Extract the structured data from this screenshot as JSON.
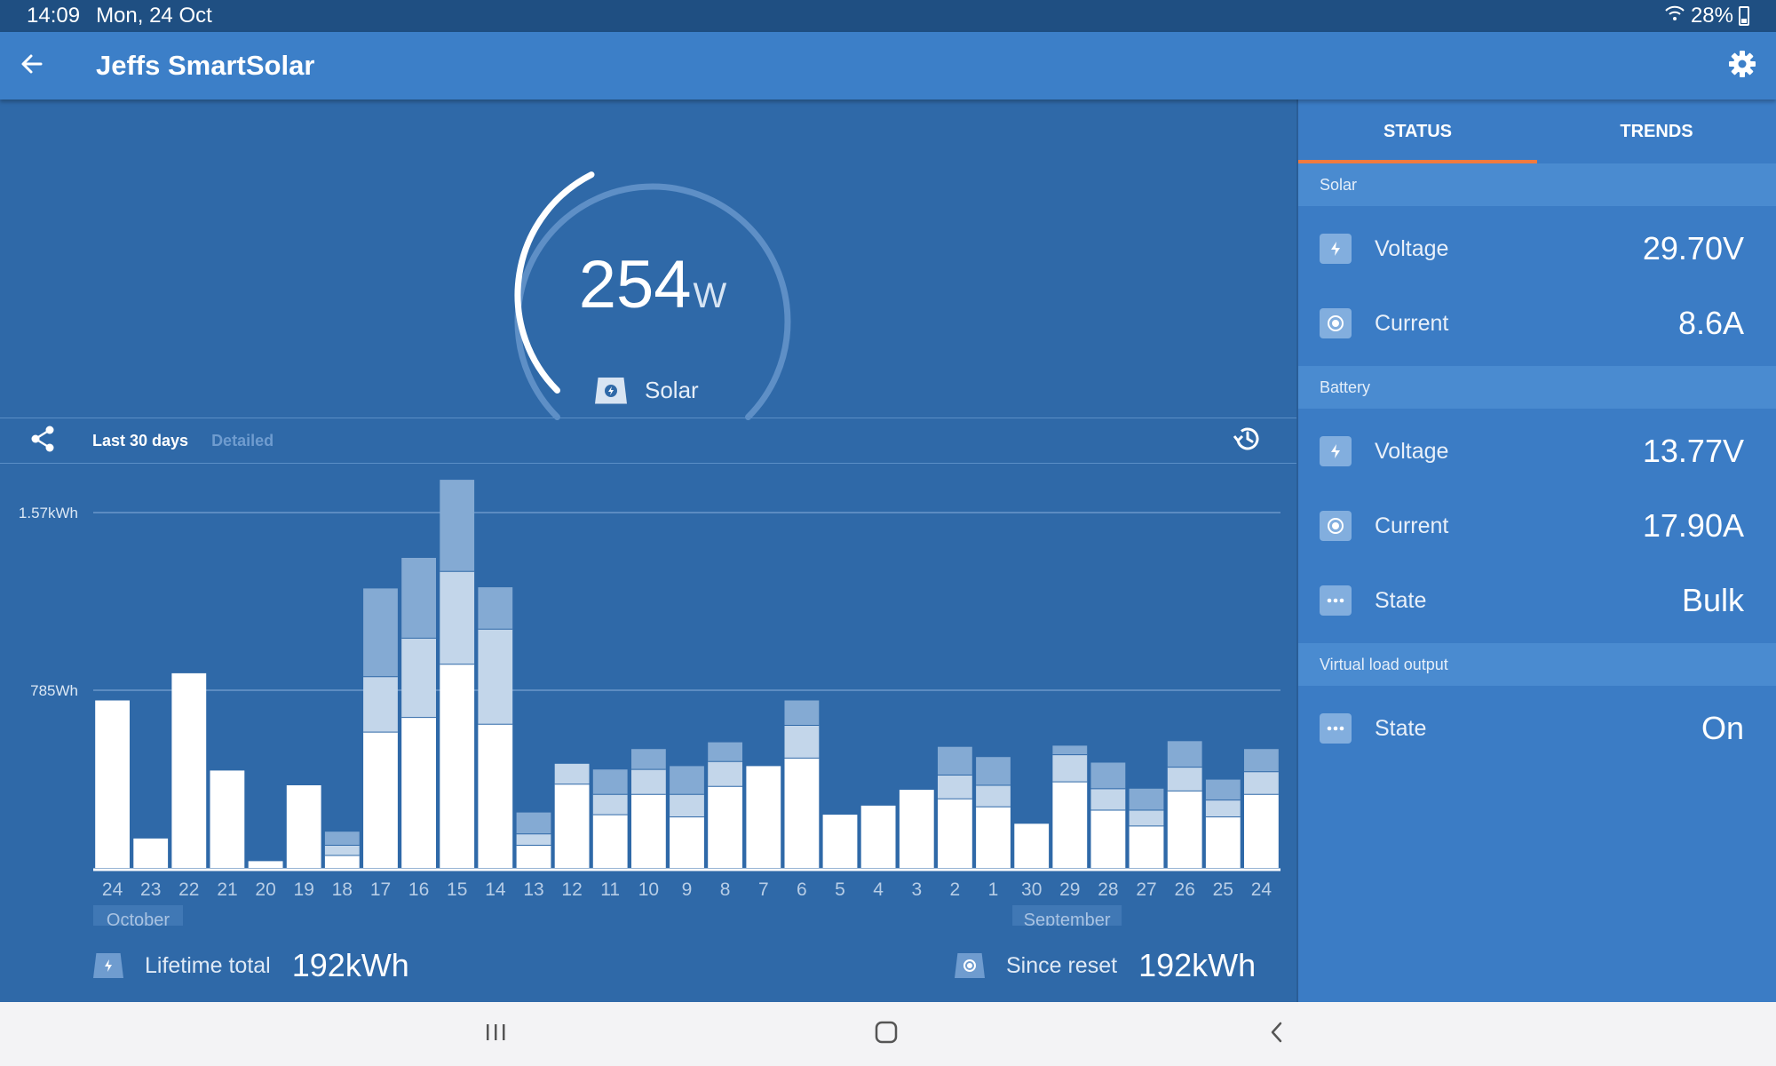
{
  "status_bar": {
    "time": "14:09",
    "date": "Mon, 24 Oct",
    "battery": "28%",
    "wifi_icon": "wifi-icon",
    "battery_icon": "battery-icon"
  },
  "app_bar": {
    "title": "Jeffs SmartSolar",
    "back_icon": "arrow-left-icon",
    "settings_icon": "gear-icon"
  },
  "gauge": {
    "value": "254",
    "unit": "W",
    "label": "Solar",
    "level": 0.4
  },
  "chart_toolbar": {
    "range": "Last 30 days",
    "mode": "Detailed"
  },
  "chart_data": {
    "type": "bar",
    "y_tick_labels": [
      "1.57kWh",
      "785Wh"
    ],
    "y_ticks": [
      1570,
      785
    ],
    "ylim": [
      0,
      1570
    ],
    "categories": [
      "24",
      "23",
      "22",
      "21",
      "20",
      "19",
      "18",
      "17",
      "16",
      "15",
      "14",
      "13",
      "12",
      "11",
      "10",
      "9",
      "8",
      "7",
      "6",
      "5",
      "4",
      "3",
      "2",
      "1",
      "30",
      "29",
      "28",
      "27",
      "26",
      "25",
      "24"
    ],
    "month_labels": [
      {
        "label": "October",
        "index": 0
      },
      {
        "label": "September",
        "index": 24
      }
    ],
    "series": [
      {
        "values": [
          740,
          130,
          860,
          430,
          30,
          365,
          55,
          600,
          665,
          900,
          635,
          100,
          370,
          235,
          325,
          225,
          360,
          450,
          485,
          235,
          275,
          345,
          305,
          270,
          195,
          380,
          255,
          185,
          340,
          225,
          325
        ]
      },
      {
        "values": [
          0,
          0,
          0,
          0,
          0,
          0,
          45,
          245,
          350,
          410,
          420,
          50,
          90,
          90,
          110,
          100,
          110,
          0,
          145,
          0,
          0,
          0,
          105,
          95,
          0,
          120,
          95,
          70,
          105,
          75,
          100
        ]
      },
      {
        "values": [
          0,
          0,
          0,
          0,
          0,
          0,
          60,
          390,
          355,
          405,
          185,
          95,
          0,
          110,
          90,
          125,
          85,
          0,
          110,
          0,
          0,
          0,
          125,
          125,
          0,
          40,
          115,
          95,
          115,
          90,
          100
        ]
      }
    ],
    "colors": [
      "#ffffff",
      "#c3d6ea",
      "#84aad3"
    ]
  },
  "totals": {
    "lifetime_label": "Lifetime total",
    "lifetime_value": "192kWh",
    "reset_label": "Since reset",
    "reset_value": "192kWh"
  },
  "panel": {
    "tabs": [
      "STATUS",
      "TRENDS"
    ],
    "solar": {
      "header": "Solar",
      "rows": [
        {
          "label": "Voltage",
          "value": "29.70V"
        },
        {
          "label": "Current",
          "value": "8.6A"
        }
      ]
    },
    "battery": {
      "header": "Battery",
      "rows": [
        {
          "label": "Voltage",
          "value": "13.77V"
        },
        {
          "label": "Current",
          "value": "17.90A"
        },
        {
          "label": "State",
          "value": "Bulk"
        }
      ]
    },
    "virtual_load": {
      "header": "Virtual load output",
      "rows": [
        {
          "label": "State",
          "value": "On"
        }
      ]
    }
  }
}
